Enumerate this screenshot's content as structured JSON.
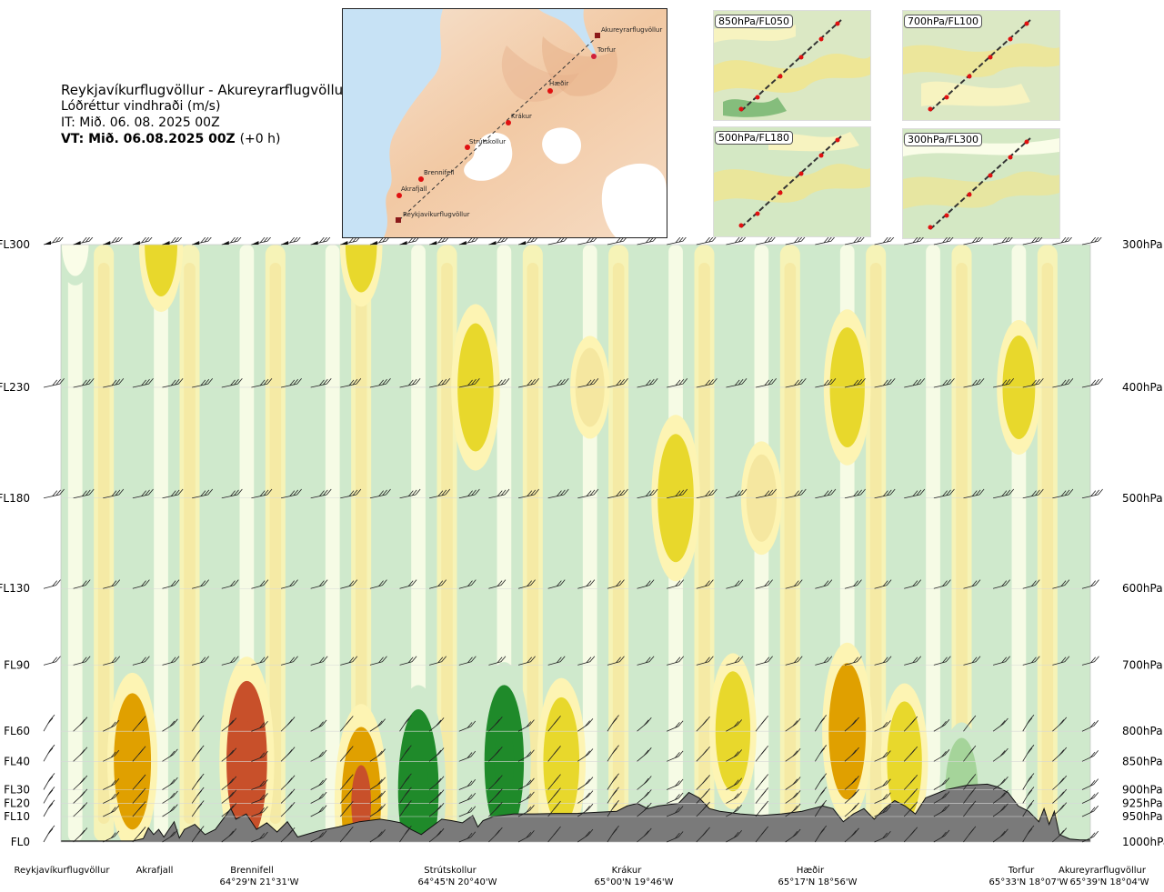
{
  "header": {
    "title": "Reykjavíkurflugvöllur - Akureyrarflugvöllur",
    "subtitle": "Lóðréttur vindhraði (m/s)",
    "init_time": "IT: Mið. 06. 08. 2025 00Z",
    "valid_time": "VT: Mið. 06.08.2025 00Z",
    "valid_offset": "(+0 h)"
  },
  "overview_map": {
    "waypoints": [
      {
        "name": "Akureyrarflugvöllur",
        "kind": "airport"
      },
      {
        "name": "Torfur",
        "kind": "point"
      },
      {
        "name": "Hæðir",
        "kind": "point"
      },
      {
        "name": "Krákur",
        "kind": "point"
      },
      {
        "name": "Strútskollur",
        "kind": "point"
      },
      {
        "name": "Brennifell",
        "kind": "point"
      },
      {
        "name": "Akrafjall",
        "kind": "point"
      },
      {
        "name": "Reykjavíkurflugvöllur",
        "kind": "airport"
      }
    ]
  },
  "mini_maps": [
    {
      "label": "850hPa/FL050"
    },
    {
      "label": "700hPa/FL100"
    },
    {
      "label": "500hPa/FL180"
    },
    {
      "label": "300hPa/FL300"
    }
  ],
  "chart_data": {
    "type": "heatmap",
    "title": "Reykjavíkurflugvöllur - Akureyrarflugvöllur",
    "variable": "Lóðréttur vindhraði (m/s)",
    "x_axis": {
      "meaning": "distance along route",
      "route_labels": [
        {
          "name": "Reykjavíkurflugvöllur",
          "coords": "",
          "frac": 0.0
        },
        {
          "name": "Akrafjall",
          "coords": "",
          "frac": 0.092
        },
        {
          "name": "Brennifell",
          "coords": "64°29'N 21°31'W",
          "frac": 0.186
        },
        {
          "name": "Strútskollur",
          "coords": "64°45'N 20°40'W",
          "frac": 0.38
        },
        {
          "name": "Krákur",
          "coords": "65°00'N 19°46'W",
          "frac": 0.568
        },
        {
          "name": "Hæðir",
          "coords": "65°17'N 18°56'W",
          "frac": 0.758
        },
        {
          "name": "Torfur",
          "coords": "65°33'N 18°07'W",
          "frac": 0.953
        },
        {
          "name": "Akureyrarflugvöllur",
          "coords": "65°39'N 18°04'W",
          "frac": 1.0
        }
      ]
    },
    "y_axis": {
      "scale": "pressure",
      "range_hpa": [
        1000,
        300
      ],
      "left_ticks": [
        {
          "label": "FL300",
          "hpa": 300
        },
        {
          "label": "FL230",
          "hpa": 400
        },
        {
          "label": "FL180",
          "hpa": 500
        },
        {
          "label": "FL130",
          "hpa": 600
        },
        {
          "label": "FL90",
          "hpa": 700
        },
        {
          "label": "FL60",
          "hpa": 800
        },
        {
          "label": "FL40",
          "hpa": 850
        },
        {
          "label": "FL30",
          "hpa": 900
        },
        {
          "label": "FL20",
          "hpa": 925
        },
        {
          "label": "FL10",
          "hpa": 950
        },
        {
          "label": "FL0",
          "hpa": 1000
        }
      ],
      "right_ticks": [
        {
          "label": "300hPa",
          "hpa": 300
        },
        {
          "label": "400hPa",
          "hpa": 400
        },
        {
          "label": "500hPa",
          "hpa": 500
        },
        {
          "label": "600hPa",
          "hpa": 600
        },
        {
          "label": "700hPa",
          "hpa": 700
        },
        {
          "label": "800hPa",
          "hpa": 800
        },
        {
          "label": "850hPa",
          "hpa": 850
        },
        {
          "label": "900hPa",
          "hpa": 900
        },
        {
          "label": "925hPa",
          "hpa": 925
        },
        {
          "label": "950hPa",
          "hpa": 950
        },
        {
          "label": "1000hPa",
          "hpa": 1000
        }
      ]
    },
    "color_scale": {
      "strong_down": "#1f8a2a",
      "down": "#5cb85c",
      "weak_down": "#a5d49a",
      "slight_down": "#cfe9cc",
      "neutral": "#fafde8",
      "slight_up": "#fdf4b3",
      "weak_up": "#f5e7a0",
      "up": "#e8d82c",
      "strong_up": "#e0a000",
      "very_strong_up": "#c8502a"
    },
    "terrain_color": "#7a7a7a",
    "cells": [
      {
        "col": 0,
        "level_hpa": 300,
        "value": -0.1
      },
      {
        "col": 3,
        "level_hpa": 300,
        "value": 0.6
      },
      {
        "col": 10,
        "level_hpa": 300,
        "value": 0.5
      },
      {
        "col": 14,
        "level_hpa": 400,
        "value": 0.9
      },
      {
        "col": 18,
        "level_hpa": 400,
        "value": 0.3
      },
      {
        "col": 21,
        "level_hpa": 500,
        "value": 0.9
      },
      {
        "col": 24,
        "level_hpa": 500,
        "value": 0.4
      },
      {
        "col": 27,
        "level_hpa": 400,
        "value": 0.8
      },
      {
        "col": 33,
        "level_hpa": 400,
        "value": 0.6
      },
      {
        "col": 2,
        "level_hpa": 850,
        "value": 1.0
      },
      {
        "col": 6,
        "level_hpa": 850,
        "value": 1.3
      },
      {
        "col": 10,
        "level_hpa": 925,
        "value": 1.2
      },
      {
        "col": 12,
        "level_hpa": 900,
        "value": -1.3
      },
      {
        "col": 15,
        "level_hpa": 850,
        "value": -1.2
      },
      {
        "col": 17,
        "level_hpa": 850,
        "value": 0.9
      },
      {
        "col": 23,
        "level_hpa": 800,
        "value": 0.8
      },
      {
        "col": 27,
        "level_hpa": 800,
        "value": 1.0
      },
      {
        "col": 29,
        "level_hpa": 850,
        "value": 0.8
      },
      {
        "col": 31,
        "level_hpa": 900,
        "value": -0.6
      }
    ]
  }
}
